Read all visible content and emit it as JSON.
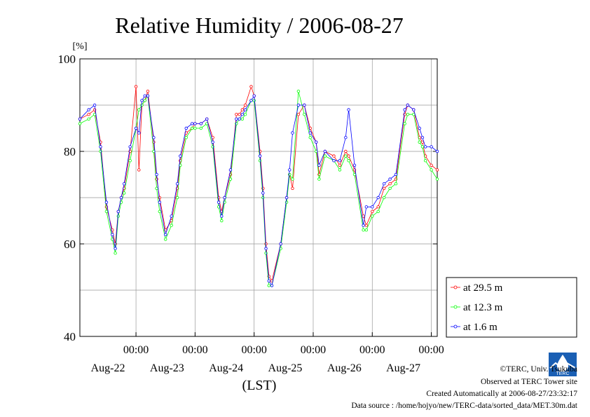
{
  "chart_data": {
    "type": "line",
    "title": "Relative Humidity / 2006-08-27",
    "ylabel": "[%]",
    "xlabel": "(LST)",
    "ylim": [
      40,
      100
    ],
    "yticks": [
      "40",
      "60",
      "80",
      "100"
    ],
    "xlim_days": [
      -0.95,
      5.1
    ],
    "xticks": [
      {
        "time": "00:00",
        "date": "Aug-22",
        "day": 0
      },
      {
        "time": "00:00",
        "date": "Aug-23",
        "day": 1
      },
      {
        "time": "00:00",
        "date": "Aug-24",
        "day": 2
      },
      {
        "time": "00:00",
        "date": "Aug-25",
        "day": 3
      },
      {
        "time": "00:00",
        "date": "Aug-26",
        "day": 4
      },
      {
        "time": "00:00",
        "date": "Aug-27",
        "day": 5
      }
    ],
    "grid": true,
    "legend_position": "right",
    "series": [
      {
        "name": "at 29.5 m",
        "color": "#ff0000",
        "x": [
          -0.95,
          -0.8,
          -0.7,
          -0.6,
          -0.5,
          -0.4,
          -0.35,
          -0.3,
          -0.25,
          -0.2,
          -0.1,
          0.0,
          0.05,
          0.1,
          0.15,
          0.2,
          0.3,
          0.35,
          0.4,
          0.5,
          0.6,
          0.7,
          0.75,
          0.85,
          0.95,
          1.0,
          1.1,
          1.2,
          1.3,
          1.4,
          1.45,
          1.5,
          1.6,
          1.7,
          1.75,
          1.8,
          1.85,
          1.95,
          2.0,
          2.1,
          2.15,
          2.2,
          2.25,
          2.3,
          2.45,
          2.55,
          2.6,
          2.65,
          2.75,
          2.85,
          2.95,
          3.05,
          3.1,
          3.2,
          3.35,
          3.45,
          3.55,
          3.6,
          3.7,
          3.85,
          3.9,
          4.0,
          4.1,
          4.2,
          4.3,
          4.4,
          4.55,
          4.6,
          4.7,
          4.8,
          4.85,
          4.9,
          5.0,
          5.1
        ],
        "y": [
          87,
          88,
          89,
          82,
          68,
          63,
          60,
          67,
          70,
          72,
          80,
          94,
          76,
          90,
          91,
          93,
          82,
          74,
          70,
          63,
          65,
          72,
          78,
          84,
          85,
          86,
          86,
          87,
          83,
          70,
          67,
          70,
          75,
          88,
          88,
          89,
          90,
          94,
          92,
          80,
          72,
          60,
          53,
          52,
          60,
          70,
          75,
          72,
          88,
          90,
          85,
          82,
          75,
          80,
          79,
          77,
          80,
          79,
          76,
          66,
          64,
          67,
          68,
          72,
          73,
          74,
          88,
          90,
          89,
          83,
          82,
          79,
          77,
          76
        ]
      },
      {
        "name": "at 12.3 m",
        "color": "#00ff00",
        "x": [
          -0.95,
          -0.8,
          -0.7,
          -0.6,
          -0.5,
          -0.4,
          -0.35,
          -0.3,
          -0.25,
          -0.2,
          -0.1,
          0.0,
          0.05,
          0.1,
          0.15,
          0.2,
          0.3,
          0.35,
          0.4,
          0.5,
          0.6,
          0.7,
          0.75,
          0.85,
          0.95,
          1.0,
          1.1,
          1.2,
          1.3,
          1.4,
          1.45,
          1.5,
          1.6,
          1.7,
          1.75,
          1.8,
          1.85,
          1.95,
          2.0,
          2.1,
          2.15,
          2.2,
          2.25,
          2.3,
          2.45,
          2.55,
          2.6,
          2.65,
          2.75,
          2.85,
          2.95,
          3.05,
          3.1,
          3.2,
          3.35,
          3.45,
          3.55,
          3.6,
          3.7,
          3.85,
          3.9,
          4.0,
          4.1,
          4.2,
          4.3,
          4.4,
          4.55,
          4.6,
          4.7,
          4.8,
          4.85,
          4.9,
          5.0,
          5.1
        ],
        "y": [
          86,
          87,
          88,
          80,
          67,
          61,
          58,
          66,
          69,
          71,
          78,
          85,
          89,
          90,
          91,
          92,
          80,
          72,
          67,
          61,
          64,
          70,
          77,
          83,
          85,
          85,
          85,
          86,
          81,
          68,
          65,
          69,
          74,
          86,
          87,
          87,
          88,
          91,
          91,
          78,
          70,
          58,
          51,
          51,
          59,
          69,
          75,
          74,
          93,
          88,
          83,
          80,
          74,
          79,
          78,
          76,
          79,
          78,
          75,
          63,
          63,
          66,
          67,
          70,
          72,
          73,
          86,
          88,
          88,
          82,
          81,
          78,
          76,
          74
        ]
      },
      {
        "name": "at 1.6 m",
        "color": "#0000ff",
        "x": [
          -0.95,
          -0.8,
          -0.7,
          -0.6,
          -0.5,
          -0.4,
          -0.35,
          -0.3,
          -0.25,
          -0.2,
          -0.1,
          0.0,
          0.05,
          0.1,
          0.15,
          0.2,
          0.3,
          0.35,
          0.4,
          0.5,
          0.6,
          0.7,
          0.75,
          0.85,
          0.95,
          1.0,
          1.1,
          1.2,
          1.3,
          1.4,
          1.45,
          1.5,
          1.6,
          1.7,
          1.75,
          1.8,
          1.85,
          1.95,
          2.0,
          2.1,
          2.15,
          2.2,
          2.25,
          2.3,
          2.45,
          2.55,
          2.6,
          2.65,
          2.75,
          2.85,
          2.95,
          3.05,
          3.1,
          3.2,
          3.35,
          3.45,
          3.55,
          3.6,
          3.7,
          3.85,
          3.9,
          4.0,
          4.1,
          4.2,
          4.3,
          4.4,
          4.55,
          4.6,
          4.7,
          4.8,
          4.85,
          4.9,
          5.0,
          5.1
        ],
        "y": [
          87,
          89,
          90,
          81,
          69,
          62,
          59,
          67,
          70,
          73,
          81,
          85,
          84,
          91,
          92,
          92,
          83,
          75,
          69,
          62,
          66,
          73,
          79,
          85,
          86,
          86,
          86,
          87,
          82,
          69,
          66,
          70,
          76,
          87,
          87,
          88,
          89,
          91,
          92,
          79,
          71,
          59,
          52,
          51,
          60,
          70,
          76,
          84,
          90,
          90,
          84,
          82,
          77,
          80,
          78,
          78,
          83,
          89,
          77,
          64,
          68,
          68,
          70,
          73,
          74,
          75,
          89,
          90,
          89,
          85,
          83,
          81,
          81,
          80
        ]
      }
    ]
  },
  "footer": {
    "copyright": "©TERC, Univ. Tsukuba",
    "site": "Observed at TERC Tower site",
    "created": "Created Automatically at 2006-08-27/23:32:17",
    "source": "Data source : /home/hojyo/new/TERC-data/sorted_data/MET.30m.dat",
    "logo_text": "TERC"
  }
}
